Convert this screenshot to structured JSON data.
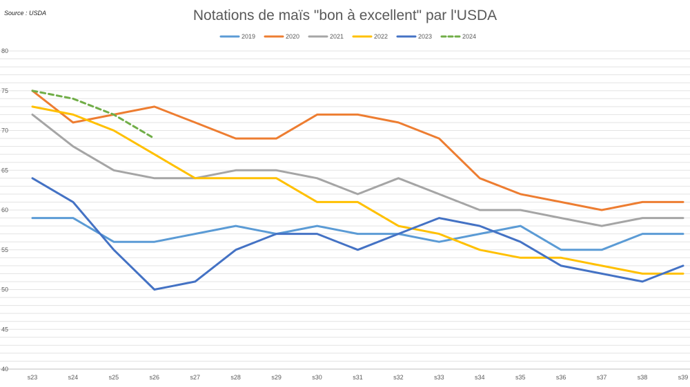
{
  "chart_data": {
    "type": "line",
    "title": "Notations de maïs \"bon à excellent\" par l'USDA",
    "source": "Source : USDA",
    "xlabel": "",
    "ylabel": "",
    "ylim": [
      40,
      80
    ],
    "yticks": [
      40,
      45,
      50,
      55,
      60,
      65,
      70,
      75,
      80
    ],
    "ytick_labels": [
      "40",
      "45",
      "50",
      "55",
      "60",
      "65",
      "70",
      "75",
      "80"
    ],
    "categories": [
      "s23",
      "s24",
      "s25",
      "s26",
      "s27",
      "s28",
      "s29",
      "s30",
      "s31",
      "s32",
      "s33",
      "s34",
      "s35",
      "s36",
      "s37",
      "s38",
      "s39"
    ],
    "legend_position": "top-center",
    "grid": true,
    "series": [
      {
        "name": "2019",
        "color": "#5b9bd5",
        "dashed": false,
        "values": [
          59,
          59,
          56,
          56,
          57,
          58,
          57,
          58,
          57,
          57,
          56,
          57,
          58,
          55,
          55,
          57,
          57
        ]
      },
      {
        "name": "2020",
        "color": "#ed7d31",
        "dashed": false,
        "values": [
          75,
          71,
          72,
          73,
          71,
          69,
          69,
          72,
          72,
          71,
          69,
          64,
          62,
          61,
          60,
          61,
          61
        ]
      },
      {
        "name": "2021",
        "color": "#a5a5a5",
        "dashed": false,
        "values": [
          72,
          68,
          65,
          64,
          64,
          65,
          65,
          64,
          62,
          64,
          62,
          60,
          60,
          59,
          58,
          59,
          59
        ]
      },
      {
        "name": "2022",
        "color": "#ffc000",
        "dashed": false,
        "values": [
          73,
          72,
          70,
          67,
          64,
          64,
          64,
          61,
          61,
          58,
          57,
          55,
          54,
          54,
          53,
          52,
          52
        ]
      },
      {
        "name": "2023",
        "color": "#4472c4",
        "dashed": false,
        "values": [
          64,
          61,
          55,
          50,
          51,
          55,
          57,
          57,
          55,
          57,
          59,
          58,
          56,
          53,
          52,
          51,
          53
        ]
      },
      {
        "name": "2024",
        "color": "#70ad47",
        "dashed": true,
        "values": [
          75,
          74,
          72,
          69,
          null,
          null,
          null,
          null,
          null,
          null,
          null,
          null,
          null,
          null,
          null,
          null,
          null
        ]
      }
    ]
  }
}
